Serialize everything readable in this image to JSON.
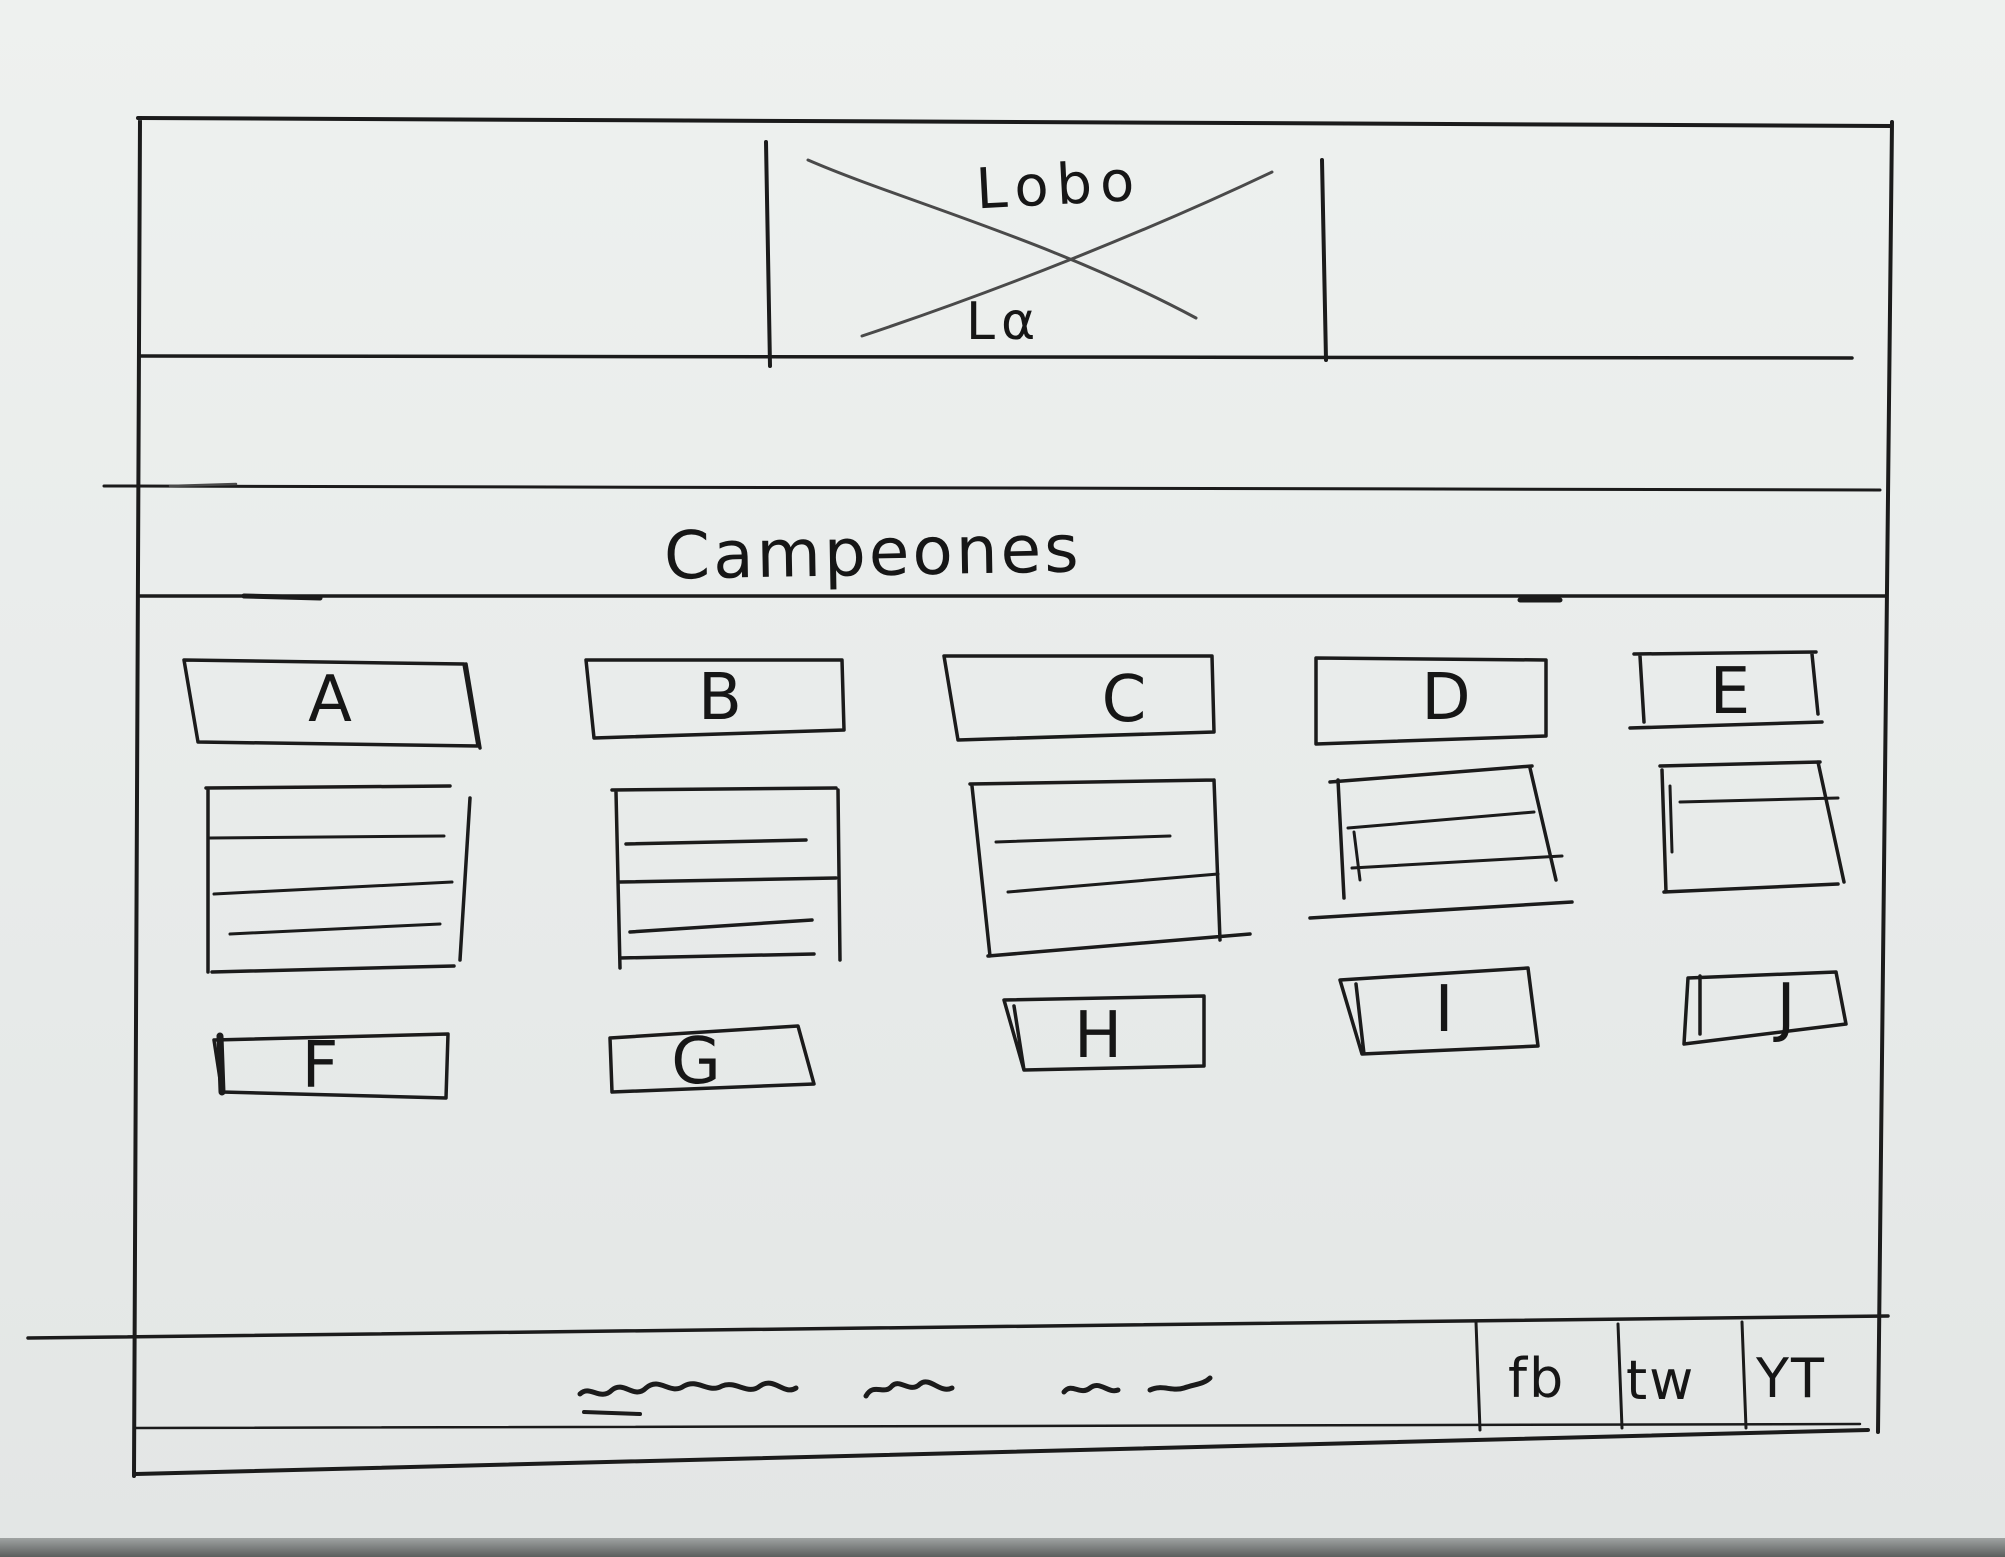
{
  "header": {
    "logo_top": "Lobo",
    "logo_bottom": "Lα"
  },
  "section": {
    "title": "Campeones"
  },
  "groups": {
    "top_labels": [
      "A",
      "B",
      "C",
      "D",
      "E"
    ],
    "bottom_labels": [
      "F",
      "G",
      "H",
      "I",
      "J"
    ]
  },
  "footer": {
    "social": [
      "fb",
      "tw",
      "YT"
    ]
  }
}
